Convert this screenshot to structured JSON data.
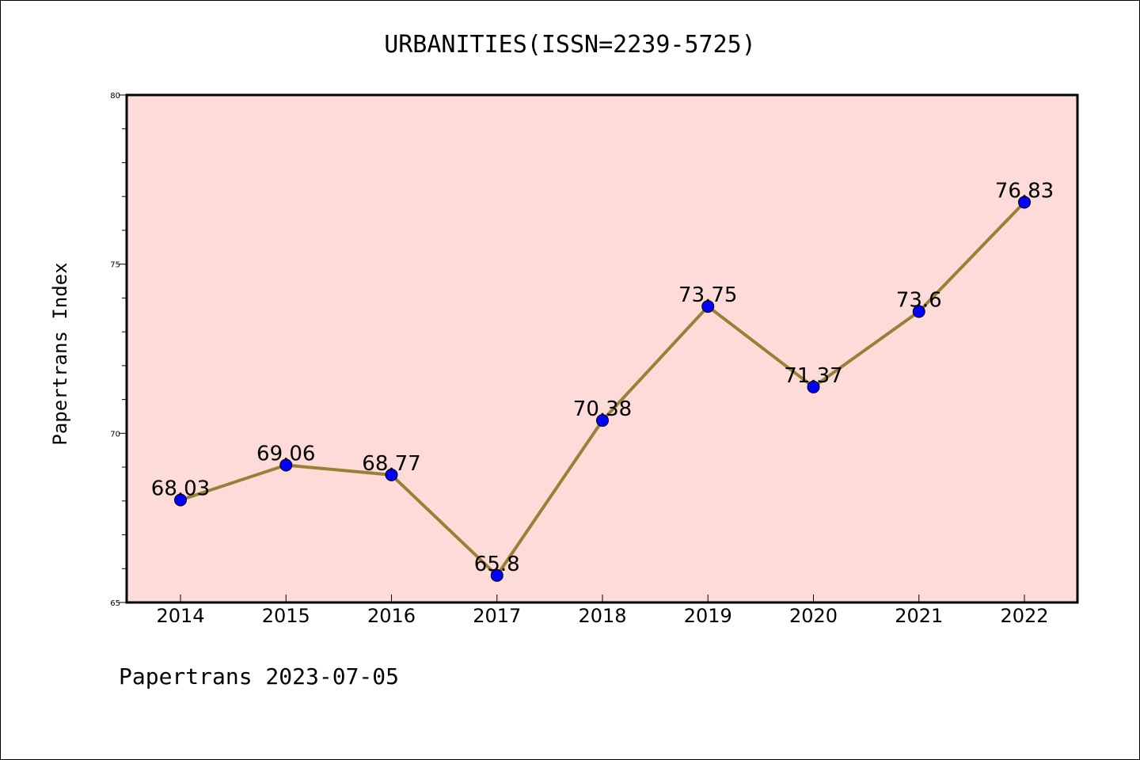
{
  "chart_data": {
    "type": "line",
    "title": "URBANITIES(ISSN=2239-5725)",
    "xlabel": "",
    "ylabel": "Papertrans Index",
    "categories": [
      "2014",
      "2015",
      "2016",
      "2017",
      "2018",
      "2019",
      "2020",
      "2021",
      "2022"
    ],
    "series": [
      {
        "values": [
          68.03,
          69.06,
          68.77,
          65.8,
          70.38,
          73.75,
          71.37,
          73.6,
          76.83
        ],
        "data_labels": [
          "68.03",
          "69.06",
          "68.77",
          "65.8",
          "70.38",
          "73.75",
          "71.37",
          "73.6",
          "76.83"
        ]
      }
    ],
    "ylim": [
      65,
      80
    ],
    "yticks": [
      "65",
      "70",
      "75",
      "80"
    ],
    "grid": false,
    "legend": "none",
    "colors": {
      "plot_background": "#fddbd8",
      "line": "#9a8037",
      "marker": "#0000ff"
    }
  },
  "footer": {
    "text": "Papertrans 2023-07-05"
  }
}
